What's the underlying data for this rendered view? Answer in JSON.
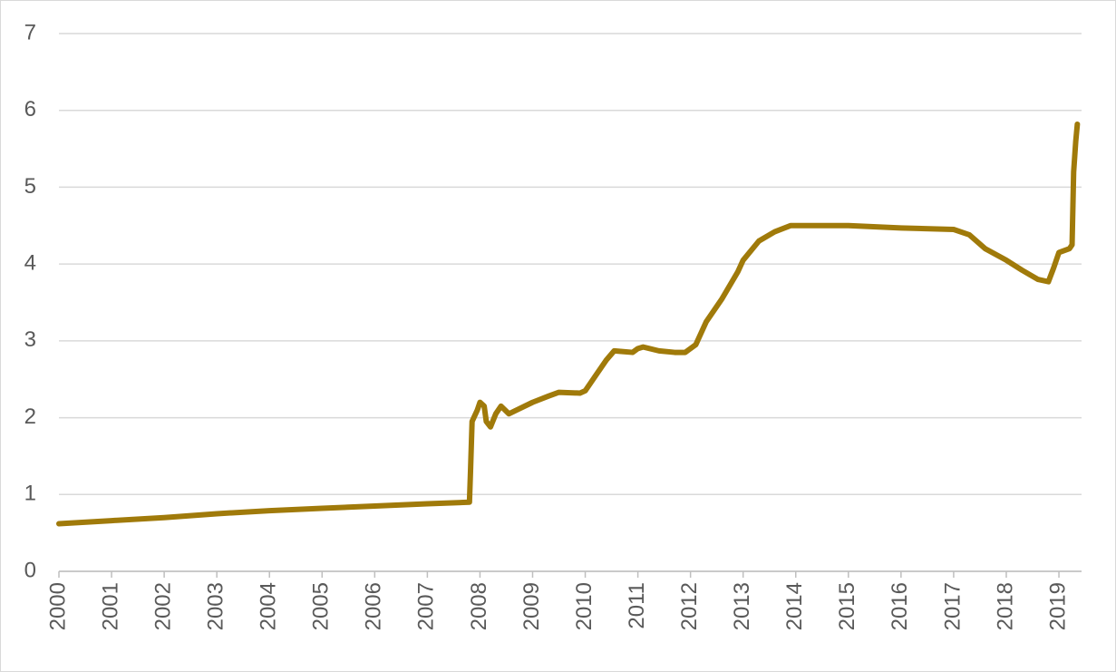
{
  "chart_data": {
    "type": "line",
    "x": [
      2000.0,
      2001.0,
      2002.0,
      2003.0,
      2004.0,
      2005.0,
      2006.0,
      2007.0,
      2007.8,
      2007.82,
      2007.85,
      2007.95,
      2008.0,
      2008.08,
      2008.12,
      2008.2,
      2008.3,
      2008.4,
      2008.55,
      2008.7,
      2009.0,
      2009.3,
      2009.5,
      2009.9,
      2010.0,
      2010.2,
      2010.4,
      2010.55,
      2010.9,
      2011.0,
      2011.1,
      2011.4,
      2011.7,
      2011.9,
      2012.1,
      2012.3,
      2012.6,
      2012.9,
      2013.0,
      2013.3,
      2013.6,
      2013.9,
      2014.0,
      2015.0,
      2016.0,
      2017.0,
      2017.3,
      2017.6,
      2018.0,
      2018.3,
      2018.6,
      2018.8,
      2018.9,
      2019.0,
      2019.2,
      2019.25,
      2019.28,
      2019.32,
      2019.35
    ],
    "series": [
      {
        "color": "#a07a0a",
        "values": [
          0.62,
          0.66,
          0.7,
          0.75,
          0.79,
          0.82,
          0.85,
          0.88,
          0.9,
          1.3,
          1.95,
          2.1,
          2.2,
          2.15,
          1.95,
          1.88,
          2.05,
          2.15,
          2.05,
          2.1,
          2.2,
          2.28,
          2.33,
          2.32,
          2.35,
          2.55,
          2.75,
          2.87,
          2.85,
          2.9,
          2.92,
          2.87,
          2.85,
          2.85,
          2.95,
          3.25,
          3.55,
          3.9,
          4.05,
          4.3,
          4.42,
          4.5,
          4.5,
          4.5,
          4.47,
          4.45,
          4.38,
          4.2,
          4.05,
          3.92,
          3.8,
          3.77,
          3.95,
          4.15,
          4.2,
          4.25,
          5.2,
          5.6,
          5.82
        ]
      }
    ],
    "xlim": [
      2000,
      2019.43
    ],
    "xticks": [
      2000,
      2001,
      2002,
      2003,
      2004,
      2005,
      2006,
      2007,
      2008,
      2009,
      2010,
      2011,
      2012,
      2013,
      2014,
      2015,
      2016,
      2017,
      2018,
      2019
    ],
    "ylim": [
      0,
      7
    ],
    "yticks": [
      0,
      1,
      2,
      3,
      4,
      5,
      6,
      7
    ],
    "grid": true
  }
}
